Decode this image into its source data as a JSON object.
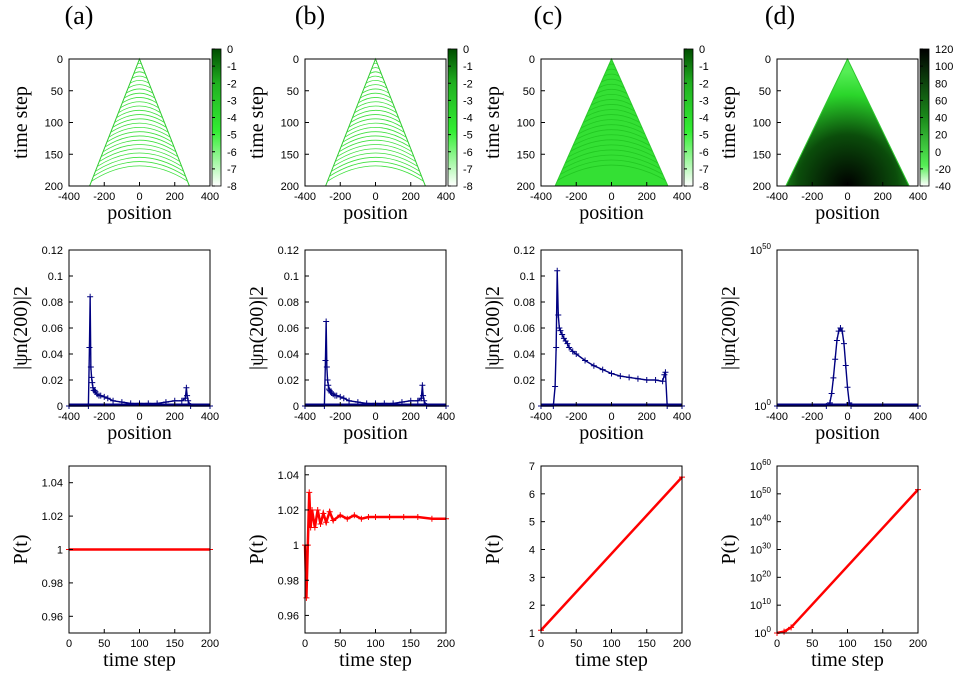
{
  "panel_headers": [
    "(a)",
    "(b)",
    "(c)",
    "(d)"
  ],
  "colors": {
    "heat_dark": "#004d00",
    "heat_bright": "#33ee33",
    "heat_light": "#ffffff",
    "dist_series": "#000080",
    "prob_series": "#ff0000",
    "axis": "#000000"
  },
  "chart_data": [
    {
      "panel": "(a)",
      "row": 1,
      "type": "heatmap",
      "xlabel": "position",
      "ylabel": "time step",
      "xlim": [
        -400,
        400
      ],
      "ylim": [
        200,
        0
      ],
      "xticks": [
        "-400",
        "-200",
        "0",
        "200",
        "400"
      ],
      "yticks": [
        "0",
        "50",
        "100",
        "150",
        "200"
      ],
      "colorbar": {
        "ticks": [
          "0",
          "-1",
          "-2",
          "-3",
          "-4",
          "-5",
          "-6",
          "-7",
          "-8"
        ],
        "range": [
          -8,
          0
        ]
      },
      "cone_half_width_at_200": 283,
      "style": "bands"
    },
    {
      "panel": "(b)",
      "row": 1,
      "type": "heatmap",
      "xlabel": "position",
      "ylabel": "time step",
      "xlim": [
        -400,
        400
      ],
      "ylim": [
        200,
        0
      ],
      "xticks": [
        "-400",
        "-200",
        "0",
        "200",
        "400"
      ],
      "yticks": [
        "0",
        "50",
        "100",
        "150",
        "200"
      ],
      "colorbar": {
        "ticks": [
          "0",
          "-1",
          "-2",
          "-3",
          "-4",
          "-5",
          "-6",
          "-7",
          "-8"
        ],
        "range": [
          -8,
          0
        ]
      },
      "cone_half_width_at_200": 283,
      "style": "bands"
    },
    {
      "panel": "(c)",
      "row": 1,
      "type": "heatmap",
      "xlabel": "position",
      "ylabel": "time step",
      "xlim": [
        -400,
        400
      ],
      "ylim": [
        200,
        0
      ],
      "xticks": [
        "-400",
        "-200",
        "0",
        "200",
        "400"
      ],
      "yticks": [
        "0",
        "50",
        "100",
        "150",
        "200"
      ],
      "colorbar": {
        "ticks": [
          "0",
          "-1",
          "-2",
          "-3",
          "-4",
          "-5",
          "-6",
          "-7",
          "-8"
        ],
        "range": [
          -8,
          0
        ]
      },
      "cone_half_width_at_200": 320,
      "style": "filled"
    },
    {
      "panel": "(d)",
      "row": 1,
      "type": "heatmap",
      "xlabel": "position",
      "ylabel": "time step",
      "xlim": [
        -400,
        400
      ],
      "ylim": [
        200,
        0
      ],
      "xticks": [
        "-400",
        "-200",
        "0",
        "200",
        "400"
      ],
      "yticks": [
        "0",
        "50",
        "100",
        "150",
        "200"
      ],
      "colorbar": {
        "ticks": [
          "120",
          "100",
          "80",
          "60",
          "40",
          "20",
          "0",
          "-20",
          "-40"
        ],
        "range": [
          -40,
          120
        ]
      },
      "cone_half_width_at_200": 350,
      "style": "dark-center"
    },
    {
      "panel": "(a)",
      "row": 2,
      "type": "line",
      "xlabel": "position",
      "ylabel": "|ψn(200)|2",
      "xlim": [
        -400,
        400
      ],
      "ylim": [
        0,
        0.12
      ],
      "xticks": [
        "-400",
        "-200",
        "0",
        "200",
        "400"
      ],
      "yticks": [
        "0",
        "0.02",
        "0.04",
        "0.06",
        "0.08",
        "0.1",
        "0.12"
      ],
      "x": [
        -400,
        -290,
        -284,
        -280,
        -276,
        -272,
        -268,
        -264,
        -260,
        -255,
        -250,
        -240,
        -230,
        -220,
        -200,
        -180,
        -150,
        -100,
        -50,
        0,
        50,
        100,
        150,
        200,
        240,
        260,
        266,
        270,
        276,
        290,
        400
      ],
      "y": [
        0,
        0,
        0.045,
        0.084,
        0.03,
        0.022,
        0.018,
        0.014,
        0.012,
        0.012,
        0.011,
        0.009,
        0.008,
        0.008,
        0.007,
        0.006,
        0.004,
        0.003,
        0.002,
        0.002,
        0.002,
        0.002,
        0.003,
        0.004,
        0.004,
        0.006,
        0.014,
        0.008,
        0.004,
        0,
        0
      ]
    },
    {
      "panel": "(b)",
      "row": 2,
      "type": "line",
      "xlabel": "position",
      "ylabel": "|ψn(200)|2",
      "xlim": [
        -400,
        400
      ],
      "ylim": [
        0,
        0.12
      ],
      "xticks": [
        "-400",
        "-200",
        "0",
        "200",
        "400"
      ],
      "yticks": [
        "0",
        "0.02",
        "0.04",
        "0.06",
        "0.08",
        "0.1",
        "0.12"
      ],
      "x": [
        -400,
        -290,
        -284,
        -280,
        -276,
        -272,
        -268,
        -264,
        -260,
        -255,
        -250,
        -240,
        -230,
        -220,
        -200,
        -180,
        -150,
        -100,
        -50,
        0,
        50,
        100,
        150,
        200,
        240,
        260,
        266,
        270,
        276,
        290,
        400
      ],
      "y": [
        0,
        0,
        0.035,
        0.065,
        0.03,
        0.02,
        0.016,
        0.013,
        0.012,
        0.011,
        0.01,
        0.009,
        0.008,
        0.008,
        0.007,
        0.006,
        0.004,
        0.003,
        0.002,
        0.002,
        0.002,
        0.002,
        0.003,
        0.004,
        0.004,
        0.006,
        0.016,
        0.008,
        0.004,
        0,
        0
      ]
    },
    {
      "panel": "(c)",
      "row": 2,
      "type": "line",
      "xlabel": "position",
      "ylabel": "|ψn(200)|2",
      "xlim": [
        -400,
        400
      ],
      "ylim": [
        0,
        0.12
      ],
      "xticks": [
        "-400",
        "-200",
        "0",
        "200",
        "400"
      ],
      "yticks": [
        "0",
        "0.02",
        "0.04",
        "0.06",
        "0.08",
        "0.1",
        "0.12"
      ],
      "x": [
        -400,
        -330,
        -320,
        -314,
        -308,
        -302,
        -296,
        -290,
        -280,
        -270,
        -260,
        -250,
        -240,
        -220,
        -200,
        -150,
        -100,
        -50,
        0,
        50,
        100,
        150,
        200,
        250,
        290,
        300,
        306,
        316,
        400
      ],
      "y": [
        0,
        0,
        0.015,
        0.045,
        0.104,
        0.07,
        0.06,
        0.058,
        0.055,
        0.052,
        0.05,
        0.048,
        0.045,
        0.042,
        0.04,
        0.035,
        0.031,
        0.028,
        0.025,
        0.023,
        0.022,
        0.021,
        0.02,
        0.02,
        0.019,
        0.024,
        0.026,
        0,
        0
      ]
    },
    {
      "panel": "(d)",
      "row": 2,
      "type": "line",
      "scale": "log",
      "xlabel": "position",
      "ylabel": "|ψn(200)|2",
      "xlim": [
        -400,
        400
      ],
      "ylim": [
        1,
        1e+50
      ],
      "yticks": [
        "10^0",
        "10^50"
      ],
      "xticks": [
        "-400",
        "-200",
        "0",
        "200",
        "400"
      ],
      "x": [
        -400,
        -120,
        -100,
        -90,
        -80,
        -70,
        -60,
        -50,
        -40,
        -30,
        -20,
        -10,
        0,
        10,
        20,
        400
      ],
      "log10_y": [
        0,
        0,
        1,
        4,
        9,
        15,
        21,
        24,
        25,
        24,
        20,
        13,
        6,
        1,
        0,
        0
      ]
    },
    {
      "panel": "(a)",
      "row": 3,
      "type": "line",
      "xlabel": "time step",
      "ylabel": "P(t)",
      "xlim": [
        0,
        200
      ],
      "ylim": [
        0.95,
        1.05
      ],
      "xticks": [
        "0",
        "50",
        "100",
        "150",
        "200"
      ],
      "yticks": [
        "0.96",
        "0.98",
        "1",
        "1.02",
        "1.04"
      ],
      "x": [
        0,
        200
      ],
      "y": [
        1,
        1
      ]
    },
    {
      "panel": "(b)",
      "row": 3,
      "type": "line",
      "xlabel": "time step",
      "ylabel": "P(t)",
      "xlim": [
        0,
        200
      ],
      "ylim": [
        0.95,
        1.045
      ],
      "xticks": [
        "0",
        "50",
        "100",
        "150",
        "200"
      ],
      "yticks": [
        "0.96",
        "0.98",
        "1",
        "1.02",
        "1.04"
      ],
      "x": [
        0,
        2,
        4,
        6,
        8,
        10,
        14,
        18,
        22,
        26,
        30,
        35,
        40,
        50,
        60,
        70,
        80,
        90,
        100,
        120,
        140,
        160,
        180,
        200
      ],
      "y": [
        1.0,
        0.97,
        1.0,
        1.03,
        1.01,
        1.02,
        1.01,
        1.02,
        1.012,
        1.018,
        1.013,
        1.019,
        1.014,
        1.017,
        1.015,
        1.017,
        1.015,
        1.016,
        1.016,
        1.016,
        1.016,
        1.016,
        1.015,
        1.015
      ]
    },
    {
      "panel": "(c)",
      "row": 3,
      "type": "line",
      "xlabel": "time step",
      "ylabel": "P(t)",
      "xlim": [
        0,
        200
      ],
      "ylim": [
        1,
        7
      ],
      "xticks": [
        "0",
        "50",
        "100",
        "150",
        "200"
      ],
      "yticks": [
        "1",
        "2",
        "3",
        "4",
        "5",
        "6",
        "7"
      ],
      "x": [
        0,
        200
      ],
      "y": [
        1.1,
        6.6
      ]
    },
    {
      "panel": "(d)",
      "row": 3,
      "type": "line",
      "scale": "log",
      "xlabel": "time step",
      "ylabel": "P(t)",
      "xlim": [
        0,
        200
      ],
      "ylim": [
        1,
        1e+60
      ],
      "xticks": [
        "0",
        "50",
        "100",
        "150",
        "200"
      ],
      "yticks": [
        "10^0",
        "10^10",
        "10^20",
        "10^30",
        "10^40",
        "10^50",
        "10^60"
      ],
      "x": [
        0,
        10,
        20,
        200
      ],
      "log10_y": [
        0,
        0.5,
        2,
        51.5
      ]
    }
  ]
}
